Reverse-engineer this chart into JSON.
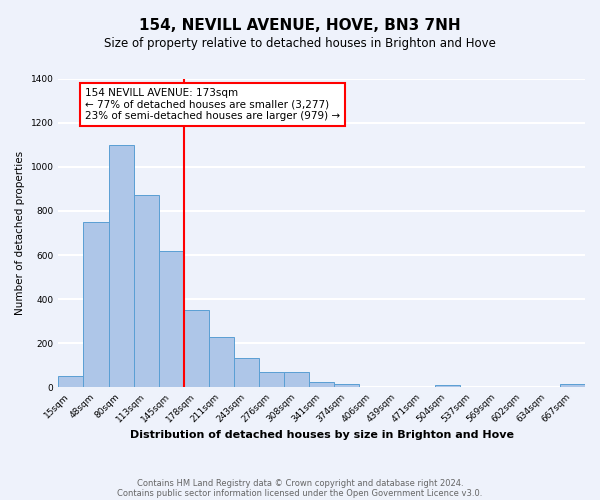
{
  "title": "154, NEVILL AVENUE, HOVE, BN3 7NH",
  "subtitle": "Size of property relative to detached houses in Brighton and Hove",
  "xlabel": "Distribution of detached houses by size in Brighton and Hove",
  "ylabel": "Number of detached properties",
  "bin_labels": [
    "15sqm",
    "48sqm",
    "80sqm",
    "113sqm",
    "145sqm",
    "178sqm",
    "211sqm",
    "243sqm",
    "276sqm",
    "308sqm",
    "341sqm",
    "374sqm",
    "406sqm",
    "439sqm",
    "471sqm",
    "504sqm",
    "537sqm",
    "569sqm",
    "602sqm",
    "634sqm",
    "667sqm"
  ],
  "bar_values": [
    50,
    750,
    1100,
    870,
    620,
    350,
    230,
    135,
    70,
    70,
    25,
    15,
    0,
    0,
    0,
    10,
    0,
    0,
    0,
    0,
    15
  ],
  "bar_color": "#aec6e8",
  "bar_edge_color": "#5a9fd4",
  "vline_x_index": 5,
  "vline_color": "red",
  "annotation_title": "154 NEVILL AVENUE: 173sqm",
  "annotation_line1": "← 77% of detached houses are smaller (3,277)",
  "annotation_line2": "23% of semi-detached houses are larger (979) →",
  "annotation_box_color": "white",
  "annotation_box_edge": "red",
  "ylim": [
    0,
    1400
  ],
  "yticks": [
    0,
    200,
    400,
    600,
    800,
    1000,
    1200,
    1400
  ],
  "footer_line1": "Contains HM Land Registry data © Crown copyright and database right 2024.",
  "footer_line2": "Contains public sector information licensed under the Open Government Licence v3.0.",
  "background_color": "#eef2fb",
  "grid_color": "white"
}
